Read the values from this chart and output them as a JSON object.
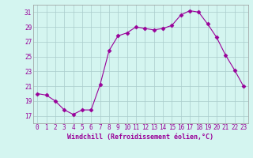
{
  "x": [
    0,
    1,
    2,
    3,
    4,
    5,
    6,
    7,
    8,
    9,
    10,
    11,
    12,
    13,
    14,
    15,
    16,
    17,
    18,
    19,
    20,
    21,
    22,
    23
  ],
  "y": [
    20.0,
    19.8,
    19.0,
    17.8,
    17.2,
    17.8,
    17.8,
    21.2,
    25.8,
    27.8,
    28.2,
    29.0,
    28.8,
    28.6,
    28.8,
    29.2,
    30.6,
    31.2,
    31.0,
    29.4,
    27.6,
    25.2,
    23.2,
    21.0
  ],
  "line_color": "#990099",
  "marker": "D",
  "marker_size": 2.5,
  "background_color": "#d4f5f0",
  "grid_color": "#aacccc",
  "xlabel": "Windchill (Refroidissement éolien,°C)",
  "xlabel_color": "#990099",
  "tick_color": "#990099",
  "ylim": [
    16,
    32
  ],
  "yticks": [
    17,
    19,
    21,
    23,
    25,
    27,
    29,
    31
  ],
  "xlim": [
    -0.5,
    23.5
  ],
  "xticks": [
    0,
    1,
    2,
    3,
    4,
    5,
    6,
    7,
    8,
    9,
    10,
    11,
    12,
    13,
    14,
    15,
    16,
    17,
    18,
    19,
    20,
    21,
    22,
    23
  ],
  "spine_color": "#999999",
  "tick_fontsize": 5.5,
  "xlabel_fontsize": 6.0
}
